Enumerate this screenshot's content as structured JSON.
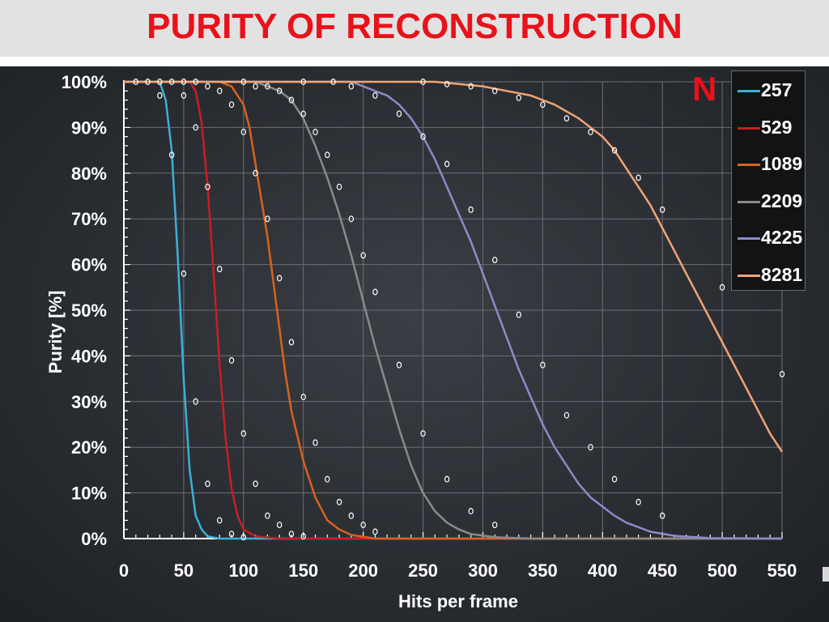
{
  "title": "PURITY OF RECONSTRUCTION",
  "legend_title": "N",
  "chart_data": {
    "type": "line",
    "title": "PURITY OF RECONSTRUCTION",
    "xlabel": "Hits per frame",
    "ylabel": "Purity [%]",
    "xlim": [
      0,
      550
    ],
    "ylim": [
      0,
      100
    ],
    "x_ticks": [
      "0",
      "50",
      "100",
      "150",
      "200",
      "250",
      "300",
      "350",
      "400",
      "450",
      "500",
      "550"
    ],
    "y_ticks": [
      "0%",
      "10%",
      "20%",
      "30%",
      "40%",
      "50%",
      "60%",
      "70%",
      "80%",
      "90%",
      "100%"
    ],
    "grid": true,
    "legend_position": "top-right",
    "series": [
      {
        "name": "257",
        "color": "#3ab0d8",
        "curve": [
          [
            0,
            100
          ],
          [
            30,
            100
          ],
          [
            35,
            96
          ],
          [
            40,
            85
          ],
          [
            45,
            62
          ],
          [
            50,
            35
          ],
          [
            55,
            15
          ],
          [
            60,
            5
          ],
          [
            65,
            2
          ],
          [
            70,
            0.5
          ],
          [
            80,
            0
          ],
          [
            550,
            0
          ]
        ],
        "markers": [
          [
            10,
            100
          ],
          [
            20,
            100
          ],
          [
            30,
            100
          ],
          [
            40,
            100
          ],
          [
            50,
            100
          ],
          [
            30,
            97
          ],
          [
            40,
            84
          ],
          [
            50,
            58
          ],
          [
            60,
            30
          ],
          [
            70,
            12
          ],
          [
            80,
            4
          ],
          [
            90,
            1
          ],
          [
            100,
            0.3
          ]
        ]
      },
      {
        "name": "529",
        "color": "#c81e24",
        "curve": [
          [
            0,
            100
          ],
          [
            55,
            100
          ],
          [
            60,
            98
          ],
          [
            65,
            91
          ],
          [
            70,
            77
          ],
          [
            75,
            58
          ],
          [
            80,
            38
          ],
          [
            85,
            22
          ],
          [
            90,
            11
          ],
          [
            95,
            5
          ],
          [
            100,
            2
          ],
          [
            110,
            0.5
          ],
          [
            130,
            0
          ],
          [
            550,
            0
          ]
        ],
        "markers": [
          [
            60,
            100
          ],
          [
            70,
            99
          ],
          [
            50,
            97
          ],
          [
            60,
            90
          ],
          [
            70,
            77
          ],
          [
            80,
            59
          ],
          [
            90,
            39
          ],
          [
            100,
            23
          ],
          [
            110,
            12
          ],
          [
            120,
            5
          ],
          [
            130,
            3
          ],
          [
            140,
            1
          ],
          [
            150,
            0.5
          ]
        ]
      },
      {
        "name": "1089",
        "color": "#d8621e",
        "curve": [
          [
            0,
            100
          ],
          [
            80,
            100
          ],
          [
            90,
            99
          ],
          [
            100,
            95
          ],
          [
            105,
            90
          ],
          [
            110,
            82
          ],
          [
            115,
            74
          ],
          [
            120,
            66
          ],
          [
            125,
            56
          ],
          [
            130,
            46
          ],
          [
            135,
            36
          ],
          [
            140,
            28
          ],
          [
            150,
            17
          ],
          [
            160,
            9
          ],
          [
            170,
            4
          ],
          [
            180,
            2
          ],
          [
            190,
            0.8
          ],
          [
            210,
            0
          ],
          [
            550,
            0
          ]
        ],
        "markers": [
          [
            80,
            98
          ],
          [
            90,
            95
          ],
          [
            100,
            89
          ],
          [
            110,
            80
          ],
          [
            120,
            70
          ],
          [
            130,
            57
          ],
          [
            140,
            43
          ],
          [
            150,
            31
          ],
          [
            160,
            21
          ],
          [
            170,
            13
          ],
          [
            180,
            8
          ],
          [
            190,
            5
          ],
          [
            200,
            3
          ],
          [
            210,
            1.5
          ]
        ]
      },
      {
        "name": "2209",
        "color": "#8a8a8a",
        "curve": [
          [
            0,
            100
          ],
          [
            110,
            100
          ],
          [
            120,
            99
          ],
          [
            130,
            98
          ],
          [
            140,
            96
          ],
          [
            150,
            92
          ],
          [
            160,
            86
          ],
          [
            170,
            79
          ],
          [
            180,
            71
          ],
          [
            190,
            62
          ],
          [
            200,
            52
          ],
          [
            210,
            42
          ],
          [
            220,
            33
          ],
          [
            230,
            24
          ],
          [
            240,
            16
          ],
          [
            250,
            10
          ],
          [
            260,
            6
          ],
          [
            270,
            3.5
          ],
          [
            280,
            2
          ],
          [
            290,
            1
          ],
          [
            310,
            0.3
          ],
          [
            340,
            0
          ],
          [
            550,
            0
          ]
        ],
        "markers": [
          [
            100,
            100
          ],
          [
            110,
            99
          ],
          [
            120,
            99
          ],
          [
            130,
            98
          ],
          [
            140,
            96
          ],
          [
            150,
            93
          ],
          [
            160,
            89
          ],
          [
            170,
            84
          ],
          [
            180,
            77
          ],
          [
            190,
            70
          ],
          [
            200,
            62
          ],
          [
            210,
            54
          ],
          [
            230,
            38
          ],
          [
            250,
            23
          ],
          [
            270,
            13
          ],
          [
            290,
            6
          ],
          [
            310,
            3
          ]
        ]
      },
      {
        "name": "4225",
        "color": "#8a8bc8",
        "curve": [
          [
            0,
            100
          ],
          [
            190,
            100
          ],
          [
            200,
            99
          ],
          [
            210,
            98
          ],
          [
            220,
            97
          ],
          [
            230,
            95
          ],
          [
            240,
            92
          ],
          [
            250,
            88
          ],
          [
            260,
            83
          ],
          [
            270,
            77
          ],
          [
            280,
            71
          ],
          [
            290,
            65
          ],
          [
            300,
            58
          ],
          [
            310,
            51
          ],
          [
            320,
            44
          ],
          [
            330,
            37
          ],
          [
            340,
            31
          ],
          [
            350,
            25
          ],
          [
            360,
            20
          ],
          [
            370,
            16
          ],
          [
            380,
            12
          ],
          [
            390,
            9
          ],
          [
            400,
            7
          ],
          [
            410,
            5
          ],
          [
            420,
            3.5
          ],
          [
            430,
            2.5
          ],
          [
            440,
            1.5
          ],
          [
            460,
            0.6
          ],
          [
            490,
            0.1
          ],
          [
            550,
            0
          ]
        ],
        "markers": [
          [
            150,
            100
          ],
          [
            175,
            100
          ],
          [
            190,
            99
          ],
          [
            210,
            97
          ],
          [
            230,
            93
          ],
          [
            250,
            88
          ],
          [
            270,
            82
          ],
          [
            290,
            72
          ],
          [
            310,
            61
          ],
          [
            330,
            49
          ],
          [
            350,
            38
          ],
          [
            370,
            27
          ],
          [
            390,
            20
          ],
          [
            410,
            13
          ],
          [
            430,
            8
          ],
          [
            450,
            5
          ]
        ]
      },
      {
        "name": "8281",
        "color": "#f0a474",
        "curve": [
          [
            0,
            100
          ],
          [
            260,
            100
          ],
          [
            280,
            99.5
          ],
          [
            300,
            99
          ],
          [
            320,
            98
          ],
          [
            340,
            97
          ],
          [
            360,
            95
          ],
          [
            380,
            92
          ],
          [
            400,
            88
          ],
          [
            410,
            85
          ],
          [
            420,
            81
          ],
          [
            430,
            77
          ],
          [
            440,
            73
          ],
          [
            450,
            68
          ],
          [
            460,
            63
          ],
          [
            470,
            58
          ],
          [
            480,
            53
          ],
          [
            490,
            48
          ],
          [
            500,
            43
          ],
          [
            510,
            38
          ],
          [
            520,
            33
          ],
          [
            530,
            28
          ],
          [
            540,
            23
          ],
          [
            550,
            19
          ]
        ],
        "markers": [
          [
            250,
            100
          ],
          [
            270,
            99.5
          ],
          [
            290,
            99
          ],
          [
            310,
            98
          ],
          [
            330,
            96.5
          ],
          [
            350,
            95
          ],
          [
            370,
            92
          ],
          [
            390,
            89
          ],
          [
            410,
            85
          ],
          [
            430,
            79
          ],
          [
            450,
            72
          ],
          [
            500,
            55
          ],
          [
            550,
            36
          ]
        ]
      }
    ]
  }
}
